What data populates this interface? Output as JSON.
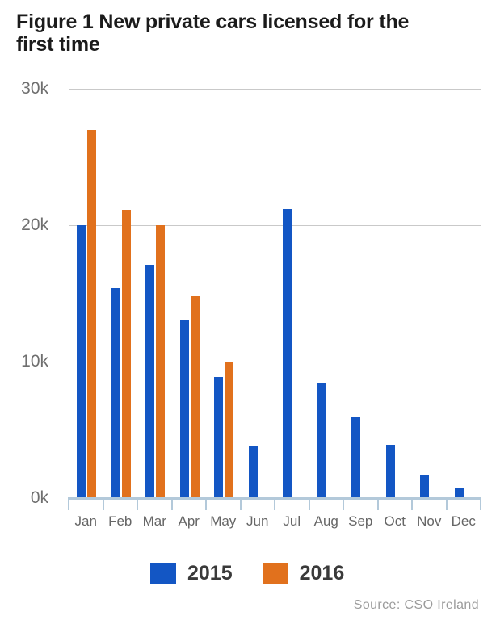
{
  "title_lines": [
    "Figure 1 New private cars licensed for the",
    "first time"
  ],
  "source": "Source: CSO Ireland",
  "legend": [
    {
      "label": "2015",
      "color": "#1356c4"
    },
    {
      "label": "2016",
      "color": "#e1711d"
    }
  ],
  "colors": {
    "series_2015": "#1356c4",
    "series_2016": "#e1711d",
    "gridline": "#c9c9c9",
    "axis": "#b3c9da",
    "title_text": "#1b1b1b",
    "axis_label_text": "#6f6f6f",
    "month_label_text": "#666666",
    "source_text": "#9b9b9b"
  },
  "chart_data": {
    "type": "bar",
    "title": "Figure 1 New private cars licensed for the first time",
    "categories": [
      "Jan",
      "Feb",
      "Mar",
      "Apr",
      "May",
      "Jun",
      "Jul",
      "Aug",
      "Sep",
      "Oct",
      "Nov",
      "Dec"
    ],
    "series": [
      {
        "name": "2015",
        "color": "#1356c4",
        "values": [
          20000,
          15400,
          17100,
          13000,
          8900,
          3800,
          21200,
          8400,
          5900,
          3900,
          1700,
          700
        ]
      },
      {
        "name": "2016",
        "color": "#e1711d",
        "values": [
          27000,
          21100,
          20000,
          14800,
          10000,
          null,
          null,
          null,
          null,
          null,
          null,
          null
        ]
      }
    ],
    "ylim": [
      0,
      30000
    ],
    "yticks": [
      {
        "value": 0,
        "label": "0k"
      },
      {
        "value": 10000,
        "label": "10k"
      },
      {
        "value": 20000,
        "label": "20k"
      },
      {
        "value": 30000,
        "label": "30k"
      }
    ],
    "grid": true,
    "legend_position": "bottom",
    "source": "Source: CSO Ireland"
  }
}
